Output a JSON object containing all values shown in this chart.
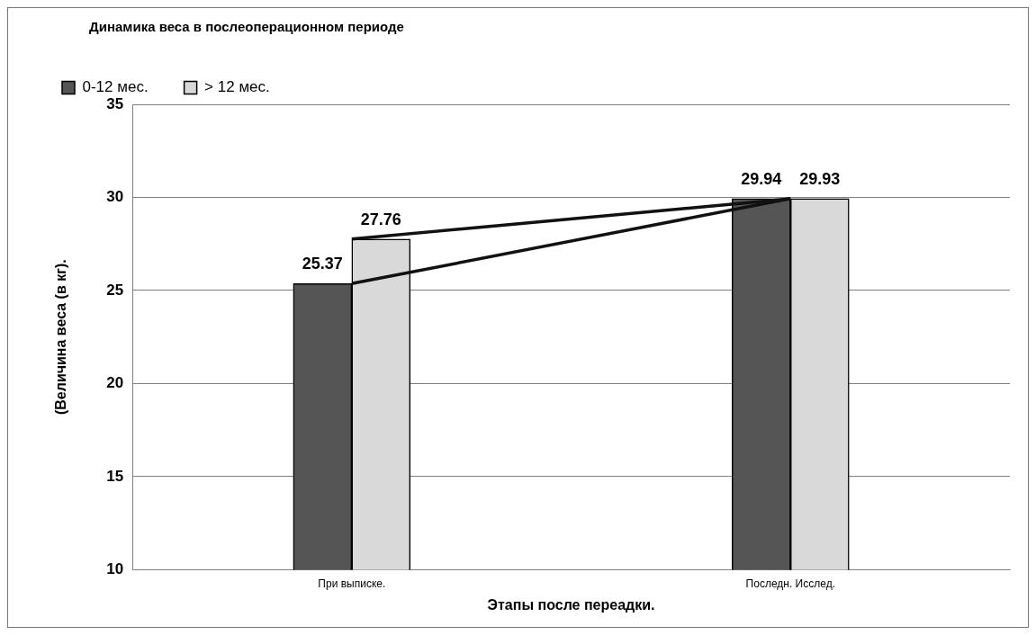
{
  "chart_data": {
    "type": "bar",
    "title": "Динамика веса в послеоперационном периоде",
    "xlabel": "Этапы после переадки.",
    "ylabel": "(Величина веса (в кг).",
    "categories": [
      "При выписке.",
      "Последн. Исслед."
    ],
    "series": [
      {
        "name": "0-12 мес.",
        "color": "#555555",
        "values": [
          25.37,
          29.94
        ],
        "value_labels": [
          "25.37",
          "29.94"
        ]
      },
      {
        "name": "> 12 мес.",
        "color": "#d9d9d9",
        "values": [
          27.76,
          29.93
        ],
        "value_labels": [
          "27.76",
          "29.93"
        ]
      },
      {
        "type": "line",
        "color": "#111111",
        "values": [
          25.37,
          29.94
        ]
      },
      {
        "type": "line",
        "color": "#111111",
        "values": [
          27.76,
          29.93
        ]
      }
    ],
    "ylim": [
      10,
      35
    ],
    "yticks": [
      10,
      15,
      20,
      25,
      30,
      35
    ],
    "grid": "y",
    "legend": "top left"
  }
}
